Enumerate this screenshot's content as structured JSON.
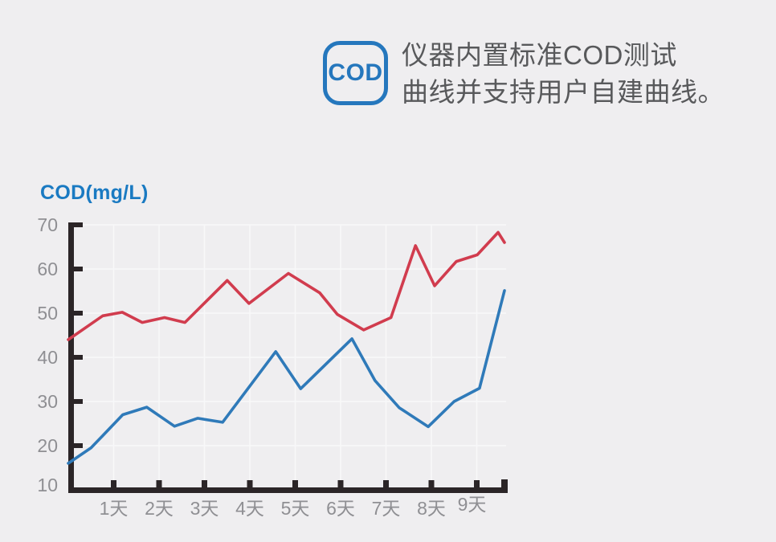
{
  "page": {
    "background": "#efeef0"
  },
  "header": {
    "badge_label": "COD",
    "badge_color": "#2577bd",
    "headline_line1": "仪器内置标准COD测试",
    "headline_line2": "曲线并支持用户自建曲线。",
    "headline_color": "#58595b"
  },
  "chart": {
    "title": "COD(mg/L)",
    "title_color": "#1a7ac2",
    "axis_color": "#2b2527",
    "grid_color": "#f8f8f9",
    "tick_label_color": "#8f8f93",
    "y_ticks": [
      70,
      60,
      50,
      40,
      30,
      20,
      10
    ],
    "x_ticks": [
      "1天",
      "2天",
      "3天",
      "4天",
      "5天",
      "6天",
      "7天",
      "8天",
      "9天"
    ]
  },
  "chart_data": {
    "type": "line",
    "title": "COD(mg/L)",
    "xlabel": "天",
    "ylabel": "COD(mg/L)",
    "xlim_days": [
      0,
      9.65
    ],
    "ylim": [
      10,
      70
    ],
    "grid": true,
    "legend": "none",
    "series": [
      {
        "name": "red-curve",
        "color": "#d13c4e",
        "points": [
          [
            0,
            44
          ],
          [
            0.76,
            49.4
          ],
          [
            1.19,
            50.2
          ],
          [
            1.63,
            47.9
          ],
          [
            2.12,
            49.0
          ],
          [
            2.57,
            47.9
          ],
          [
            3.5,
            57.4
          ],
          [
            3.98,
            52.2
          ],
          [
            4.85,
            59.0
          ],
          [
            5.54,
            54.6
          ],
          [
            5.93,
            49.7
          ],
          [
            6.51,
            46.2
          ],
          [
            7.11,
            49.0
          ],
          [
            7.65,
            65.3
          ],
          [
            8.07,
            56.2
          ],
          [
            8.55,
            61.7
          ],
          [
            9.01,
            63.2
          ],
          [
            9.47,
            68.3
          ],
          [
            9.61,
            66.0
          ]
        ]
      },
      {
        "name": "blue-curve",
        "color": "#2f7ab9",
        "points": [
          [
            0,
            16
          ],
          [
            0.5,
            19.5
          ],
          [
            1.2,
            27.0
          ],
          [
            1.73,
            28.7
          ],
          [
            2.34,
            24.4
          ],
          [
            2.85,
            26.2
          ],
          [
            3.4,
            25.3
          ],
          [
            4.57,
            41.3
          ],
          [
            5.12,
            32.9
          ],
          [
            6.25,
            44.2
          ],
          [
            6.76,
            34.7
          ],
          [
            7.29,
            28.6
          ],
          [
            7.93,
            24.3
          ],
          [
            8.5,
            30.0
          ],
          [
            9.06,
            33.0
          ],
          [
            9.61,
            55.1
          ]
        ]
      }
    ]
  }
}
